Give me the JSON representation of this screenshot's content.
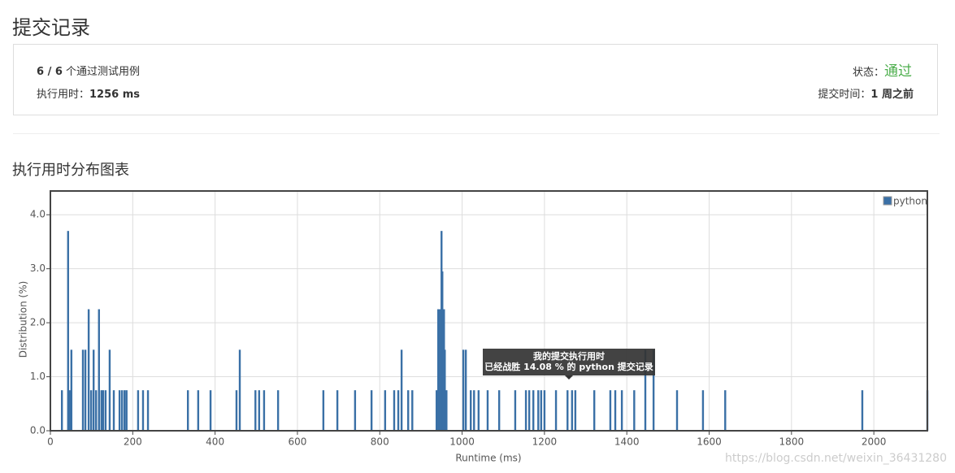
{
  "header": {
    "title": "提交记录"
  },
  "summary": {
    "passed": "6 / 6",
    "passed_label": "个通过测试用例",
    "runtime_label": "执行用时：",
    "runtime": "1256 ms",
    "status_label": "状态：",
    "status": "通过",
    "time_label": "提交时间：",
    "time": "1 周之前"
  },
  "section_title": "执行用时分布图表",
  "chart_data": {
    "type": "bar",
    "x": [
      28,
      43,
      47,
      51,
      79,
      85,
      93,
      99,
      105,
      111,
      118,
      124,
      128,
      134,
      144,
      154,
      168,
      174,
      180,
      185,
      213,
      225,
      237,
      334,
      359,
      389,
      452,
      460,
      498,
      507,
      519,
      553,
      663,
      697,
      740,
      780,
      813,
      835,
      845,
      853,
      869,
      879,
      938,
      942,
      946,
      950,
      952,
      956,
      958,
      962,
      1003,
      1009,
      1021,
      1029,
      1040,
      1062,
      1090,
      1129,
      1155,
      1163,
      1173,
      1185,
      1192,
      1200,
      1228,
      1256,
      1267,
      1275,
      1321,
      1360,
      1372,
      1388,
      1418,
      1445,
      1465,
      1522,
      1585,
      1639,
      1972,
      2130
    ],
    "series": [
      {
        "name": "python",
        "color": "#3a70a6",
        "values": [
          0.75,
          3.7,
          0.75,
          1.5,
          1.5,
          1.5,
          2.25,
          0.75,
          1.5,
          0.75,
          2.25,
          0.75,
          0.75,
          0.75,
          1.5,
          0.75,
          0.75,
          0.75,
          0.75,
          0.75,
          0.75,
          0.75,
          0.75,
          0.75,
          0.75,
          0.75,
          0.75,
          1.5,
          0.75,
          0.75,
          0.75,
          0.75,
          0.75,
          0.75,
          0.75,
          0.75,
          0.75,
          0.75,
          0.75,
          1.5,
          0.75,
          0.75,
          0.75,
          2.25,
          2.25,
          3.7,
          2.95,
          2.25,
          1.5,
          0.75,
          1.5,
          1.5,
          0.75,
          0.75,
          0.75,
          0.75,
          0.75,
          0.75,
          0.75,
          0.75,
          0.75,
          0.75,
          0.75,
          0.75,
          0.75,
          0.75,
          0.75,
          0.75,
          0.75,
          0.75,
          0.75,
          0.75,
          0.75,
          1.5,
          1.5,
          0.75,
          0.75,
          0.75,
          0.75,
          0.75
        ]
      }
    ],
    "xlim": [
      0,
      2130
    ],
    "ylim": [
      0,
      4.44
    ],
    "xticks": [
      0,
      200,
      400,
      600,
      800,
      1000,
      1200,
      1400,
      1600,
      1800,
      2000
    ],
    "yticks": [
      {
        "value": 0,
        "label": "0.0"
      },
      {
        "value": 1,
        "label": "1.0"
      },
      {
        "value": 2,
        "label": "2.0"
      },
      {
        "value": 3,
        "label": "3.0"
      },
      {
        "value": 4,
        "label": "4.0"
      }
    ],
    "xlabel": "Runtime (ms)",
    "ylabel": "Distribution (%)",
    "grid": true,
    "legend": "top-right",
    "annotation": [
      "我的提交执行用时",
      "已经战胜 14.08 % 的 python 提交记录"
    ]
  },
  "watermark": "https://blog.csdn.net/weixin_36431280"
}
